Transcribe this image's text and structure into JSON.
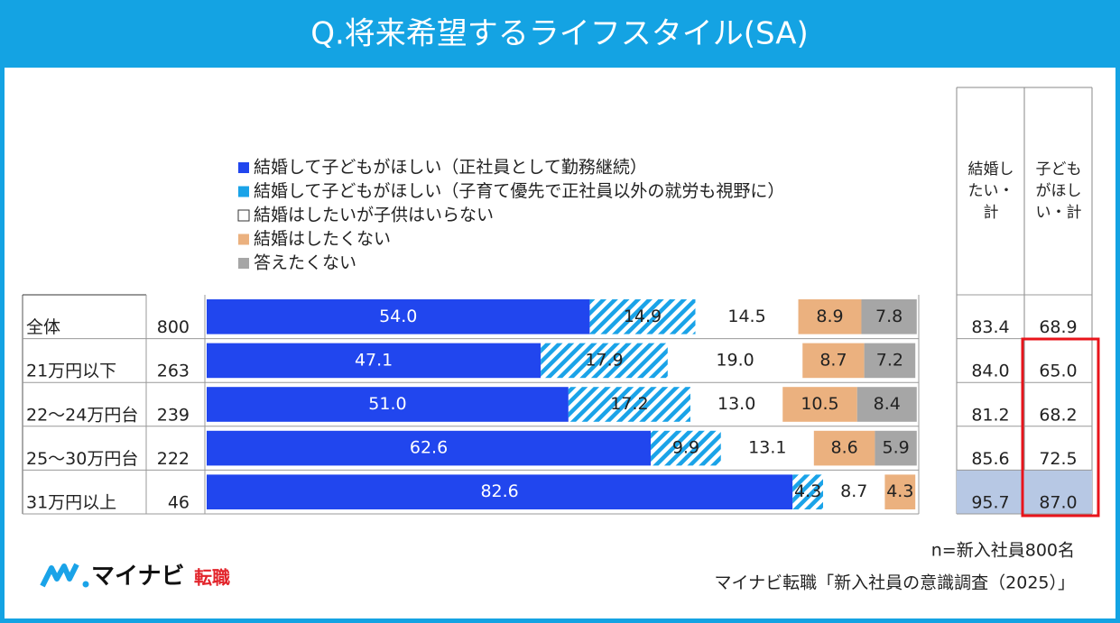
{
  "chart_data": {
    "type": "bar",
    "orientation": "horizontal",
    "stacked": true,
    "title": "Q.将来希望するライフスタイル(SA)",
    "categories": [
      "全体",
      "21万円以下",
      "22～24万円台",
      "25～30万円台",
      "31万円以上"
    ],
    "n": [
      800,
      263,
      239,
      222,
      46
    ],
    "xlim": [
      0,
      100
    ],
    "series": [
      {
        "name": "結婚して子どもがほしい（正社員として勤務継続）",
        "color": "#2146ee",
        "fill": "solid",
        "values": [
          54.0,
          47.1,
          51.0,
          62.6,
          82.6
        ],
        "value_labels": [
          "54.0",
          "47.1",
          "51.0",
          "62.6",
          "82.6"
        ]
      },
      {
        "name": "結婚して子どもがほしい（子育て優先で正社員以外の就労も視野に）",
        "color": "#1aa3e8",
        "fill": "hatch",
        "values": [
          14.9,
          17.9,
          17.2,
          9.9,
          4.3
        ],
        "value_labels": [
          "14.9",
          "17.9",
          "17.2",
          "9.9",
          "4.3"
        ]
      },
      {
        "name": "結婚はしたいが子供はいらない",
        "color": "#ffffff",
        "fill": "solid",
        "values": [
          14.5,
          19.0,
          13.0,
          13.1,
          8.7
        ],
        "value_labels": [
          "14.5",
          "19.0",
          "13.0",
          "13.1",
          "8.7"
        ]
      },
      {
        "name": "結婚はしたくない",
        "color": "#ebb17f",
        "fill": "solid",
        "values": [
          8.9,
          8.7,
          10.5,
          8.6,
          4.3
        ],
        "value_labels": [
          "8.9",
          "8.7",
          "10.5",
          "8.6",
          "4.3"
        ]
      },
      {
        "name": "答えたくない",
        "color": "#a6a6a6",
        "fill": "solid",
        "values": [
          7.8,
          7.2,
          8.4,
          5.9,
          null
        ],
        "value_labels": [
          "7.8",
          "7.2",
          "8.4",
          "5.9",
          null
        ]
      }
    ],
    "totals": [
      {
        "name": "結婚したい・計",
        "values": [
          83.4,
          84.0,
          81.2,
          85.6,
          95.7
        ],
        "value_labels": [
          "83.4",
          "84.0",
          "81.2",
          "85.6",
          "95.7"
        ]
      },
      {
        "name": "子どもがほしい・計",
        "values": [
          68.9,
          65.0,
          68.2,
          72.5,
          87.0
        ],
        "value_labels": [
          "68.9",
          "65.0",
          "68.2",
          "72.5",
          "87.0"
        ]
      }
    ]
  },
  "note": "n=新入社員800名",
  "source": "マイナビ転職「新入社員の意識調査（2025）」",
  "logo": {
    "brand": "マイナビ",
    "service": "転職"
  }
}
